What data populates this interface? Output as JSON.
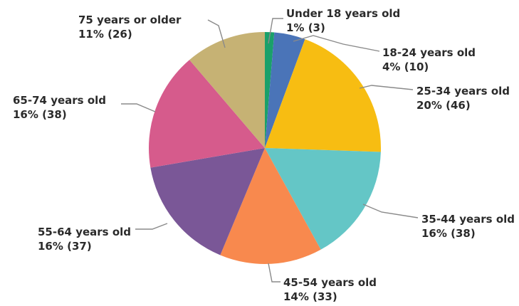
{
  "chart_data": {
    "type": "pie",
    "title": "",
    "start_angle_deg": 0,
    "direction": "clockwise",
    "slices": [
      {
        "label": "Under 18 years old",
        "percent_text": "1% (3)",
        "value": 3,
        "color": "#1aa06a"
      },
      {
        "label": "18-24 years old",
        "percent_text": "4% (10)",
        "value": 10,
        "color": "#4a74b8"
      },
      {
        "label": "25-34 years old",
        "percent_text": "20% (46)",
        "value": 46,
        "color": "#f7bd12"
      },
      {
        "label": "35-44 years old",
        "percent_text": "16% (38)",
        "value": 38,
        "color": "#64c6c6"
      },
      {
        "label": "45-54 years old",
        "percent_text": "14% (33)",
        "value": 33,
        "color": "#f8894e"
      },
      {
        "label": "55-64 years old",
        "percent_text": "16% (37)",
        "value": 37,
        "color": "#7a5797"
      },
      {
        "label": "65-74 years old",
        "percent_text": "16% (38)",
        "value": 38,
        "color": "#d65b8c"
      },
      {
        "label": "75 years or older",
        "percent_text": "11% (26)",
        "value": 26,
        "color": "#c6b274"
      }
    ]
  }
}
